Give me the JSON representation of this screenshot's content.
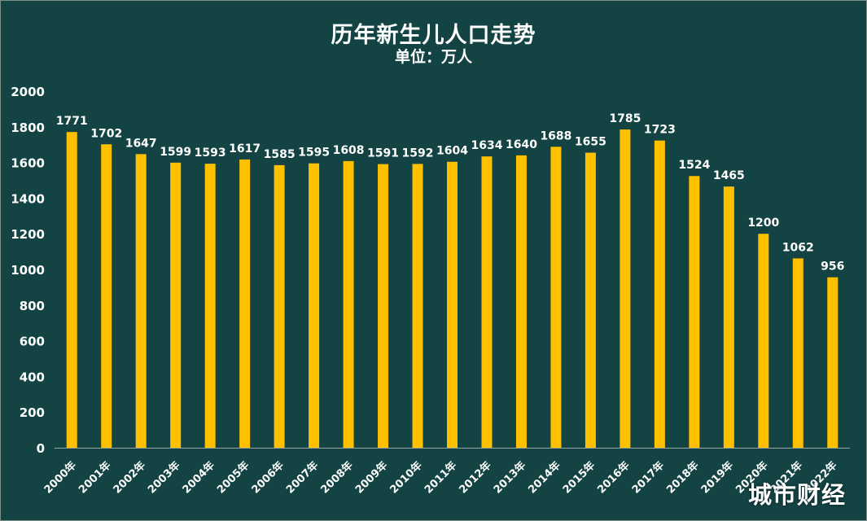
{
  "chart_data": {
    "type": "bar",
    "title": "历年新生儿人口走势",
    "subtitle": "单位：万人",
    "categories": [
      "2000年",
      "2001年",
      "2002年",
      "2003年",
      "2004年",
      "2005年",
      "2006年",
      "2007年",
      "2008年",
      "2009年",
      "2010年",
      "2011年",
      "2012年",
      "2013年",
      "2014年",
      "2015年",
      "2016年",
      "2017年",
      "2018年",
      "2019年",
      "2020年",
      "2021年",
      "2022年"
    ],
    "values": [
      1771,
      1702,
      1647,
      1599,
      1593,
      1617,
      1585,
      1595,
      1608,
      1591,
      1592,
      1604,
      1634,
      1640,
      1688,
      1655,
      1785,
      1723,
      1524,
      1465,
      1200,
      1062,
      956
    ],
    "ylim": [
      0,
      2000
    ],
    "yticks": [
      0,
      200,
      400,
      600,
      800,
      1000,
      1200,
      1400,
      1600,
      1800,
      2000
    ],
    "grid": false,
    "legend": "none",
    "data_labels": true
  },
  "watermark": "城市财经",
  "colors": {
    "background": "#134343",
    "bar": "#FFC000",
    "text": "#ffffff",
    "axis": "#9aa6a3"
  }
}
